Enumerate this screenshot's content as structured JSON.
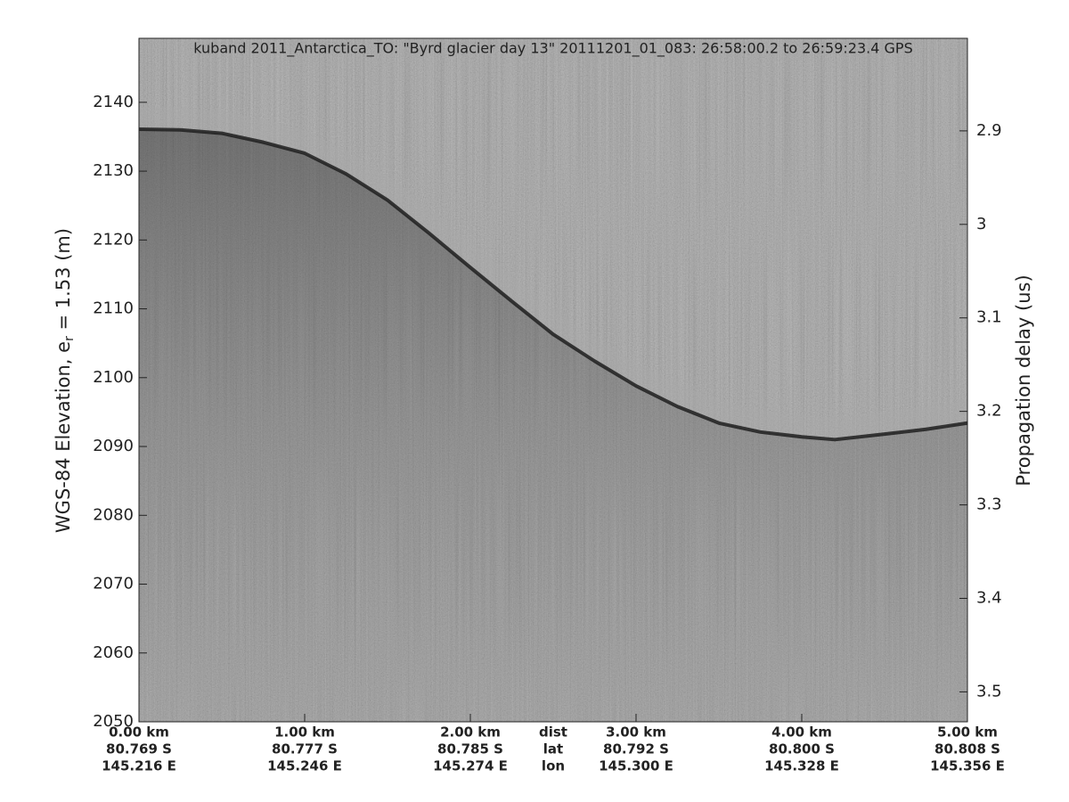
{
  "chart_data": {
    "type": "line",
    "title": "kuband 2011_Antarctica_TO: \"Byrd glacier day 13\"  20111201_01_083: 26:58:00.2 to 26:59:23.4 GPS",
    "ylabel": {
      "main": "WGS-84 Elevation, e",
      "sub": "r",
      "rest": " = 1.53 (m)"
    },
    "y2label": "Propagation delay (us)",
    "x": [
      0,
      0.25,
      0.5,
      0.75,
      1,
      1.25,
      1.5,
      1.75,
      2,
      2.25,
      2.5,
      2.75,
      3,
      3.25,
      3.5,
      3.75,
      4,
      4.2,
      4.5,
      4.75,
      5
    ],
    "values": [
      2136.1,
      2136,
      2135.5,
      2134.2,
      2132.6,
      2129.6,
      2125.8,
      2121,
      2116,
      2111.1,
      2106.3,
      2102.4,
      2098.8,
      2095.8,
      2093.4,
      2092.1,
      2091.4,
      2091,
      2091.8,
      2092.5,
      2093.4
    ],
    "color": "#1e1e1e",
    "xlim": [
      0,
      5
    ],
    "xticks": [
      {
        "value": 0,
        "label": "0.00 km"
      },
      {
        "value": 1,
        "label": "1.00 km"
      },
      {
        "value": 2,
        "label": "2.00 km"
      },
      {
        "value": 3,
        "label": "3.00 km"
      },
      {
        "value": 4,
        "label": "4.00 km"
      },
      {
        "value": 5,
        "label": "5.00 km"
      }
    ],
    "xtick_lat": [
      "80.769 S",
      "80.777 S",
      "80.785 S",
      "80.792 S",
      "80.800 S",
      "80.808 S"
    ],
    "xtick_lon": [
      "145.216 E",
      "145.246 E",
      "145.274 E",
      "145.300 E",
      "145.328 E",
      "145.356 E"
    ],
    "xtick_rows": [
      "dist",
      "lat",
      "lon"
    ],
    "ylim": [
      2050,
      2149.3
    ],
    "yticks": [
      2050,
      2060,
      2070,
      2080,
      2090,
      2100,
      2110,
      2120,
      2130,
      2140
    ],
    "y2lim": [
      3.532,
      2.801
    ],
    "y2ticks": [
      2.9,
      3,
      3.1,
      3.2,
      3.3,
      3.4,
      3.5
    ]
  }
}
